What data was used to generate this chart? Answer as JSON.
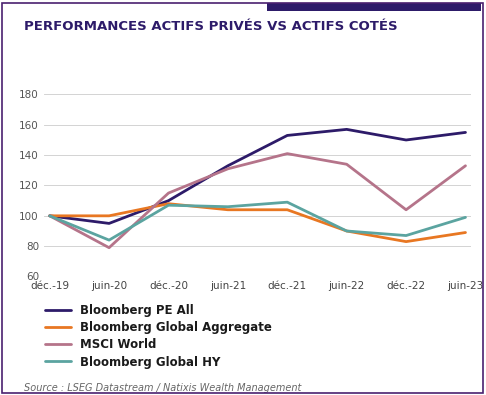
{
  "title": "PERFORMANCES ACTIFS PRIVÉS VS ACTIFS COTÉS",
  "source": "Source : LSEG Datastream / Natixis Wealth Management",
  "x_labels": [
    "déc.-19",
    "juin-20",
    "déc.-20",
    "juin-21",
    "déc.-21",
    "juin-22",
    "déc.-22",
    "juin-23"
  ],
  "series": [
    {
      "name": "Bloomberg PE All",
      "color": "#2d1b69",
      "linewidth": 2.0,
      "values": [
        100,
        95,
        110,
        133,
        153,
        157,
        150,
        155
      ]
    },
    {
      "name": "Bloomberg Global Aggregate",
      "color": "#e87722",
      "linewidth": 2.0,
      "values": [
        100,
        100,
        108,
        104,
        104,
        90,
        83,
        89
      ]
    },
    {
      "name": "MSCI World",
      "color": "#b5748a",
      "linewidth": 2.0,
      "values": [
        100,
        79,
        115,
        131,
        141,
        134,
        104,
        133
      ]
    },
    {
      "name": "Bloomberg Global HY",
      "color": "#5ba4a0",
      "linewidth": 2.0,
      "values": [
        100,
        84,
        107,
        106,
        109,
        90,
        87,
        99
      ]
    }
  ],
  "ylim": [
    60,
    185
  ],
  "yticks": [
    60,
    80,
    100,
    120,
    140,
    160,
    180
  ],
  "background_color": "#ffffff",
  "grid_color": "#cccccc",
  "title_color": "#2d1b69",
  "title_fontsize": 9.5,
  "source_fontsize": 7.0,
  "legend_fontsize": 8.5,
  "tick_fontsize": 7.5,
  "border_color": "#4a2070",
  "topbar_color": "#2d1b69"
}
